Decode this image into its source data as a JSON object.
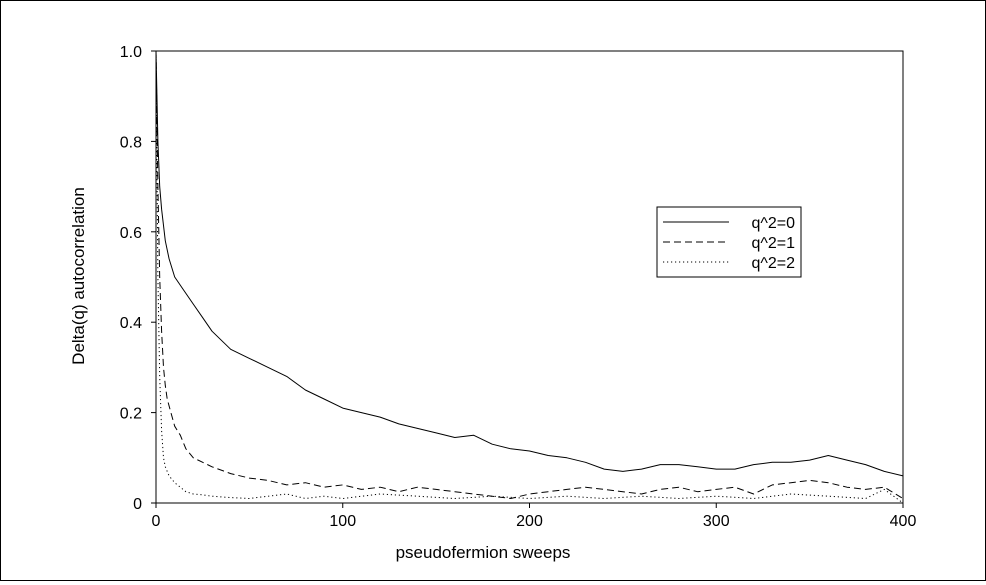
{
  "chart_data": {
    "type": "line",
    "xlabel": "pseudofermion sweeps",
    "ylabel": "Delta(q) autocorrelation",
    "xlim": [
      0,
      400
    ],
    "ylim": [
      0,
      1.0
    ],
    "xticks": [
      {
        "value": 0,
        "label": "0"
      },
      {
        "value": 100,
        "label": "100"
      },
      {
        "value": 200,
        "label": "200"
      },
      {
        "value": 300,
        "label": "300"
      },
      {
        "value": 400,
        "label": "400"
      }
    ],
    "yticks": [
      {
        "value": 0,
        "label": "0"
      },
      {
        "value": 0.2,
        "label": "0.2"
      },
      {
        "value": 0.4,
        "label": "0.4"
      },
      {
        "value": 0.6,
        "label": "0.6"
      },
      {
        "value": 0.8,
        "label": "0.8"
      },
      {
        "value": 1.0,
        "label": "1.0"
      }
    ],
    "grid": false,
    "legend_position": "right",
    "series": [
      {
        "name": "q^2=0",
        "style": "solid",
        "color": "#000000",
        "x": [
          0,
          1,
          2,
          3,
          5,
          7,
          10,
          15,
          20,
          25,
          30,
          35,
          40,
          50,
          60,
          70,
          80,
          90,
          100,
          110,
          120,
          130,
          140,
          150,
          160,
          170,
          180,
          190,
          200,
          210,
          220,
          230,
          240,
          250,
          260,
          270,
          280,
          290,
          300,
          310,
          320,
          330,
          340,
          350,
          360,
          370,
          380,
          390,
          400
        ],
        "y": [
          1.0,
          0.8,
          0.7,
          0.65,
          0.58,
          0.54,
          0.5,
          0.47,
          0.44,
          0.41,
          0.38,
          0.36,
          0.34,
          0.32,
          0.3,
          0.28,
          0.25,
          0.23,
          0.21,
          0.2,
          0.19,
          0.175,
          0.165,
          0.155,
          0.145,
          0.15,
          0.13,
          0.12,
          0.115,
          0.105,
          0.1,
          0.09,
          0.075,
          0.07,
          0.075,
          0.085,
          0.085,
          0.08,
          0.075,
          0.075,
          0.085,
          0.09,
          0.09,
          0.095,
          0.105,
          0.095,
          0.085,
          0.07,
          0.06
        ]
      },
      {
        "name": "q^2=1",
        "style": "dashed",
        "color": "#000000",
        "x": [
          0,
          1,
          2,
          3,
          4,
          5,
          6,
          8,
          10,
          13,
          16,
          20,
          25,
          30,
          40,
          50,
          60,
          70,
          80,
          90,
          100,
          110,
          120,
          130,
          140,
          150,
          160,
          170,
          180,
          190,
          200,
          210,
          220,
          230,
          240,
          250,
          260,
          270,
          280,
          290,
          300,
          310,
          320,
          330,
          340,
          350,
          360,
          370,
          380,
          390,
          400
        ],
        "y": [
          1.0,
          0.7,
          0.5,
          0.38,
          0.3,
          0.26,
          0.23,
          0.2,
          0.17,
          0.15,
          0.12,
          0.1,
          0.09,
          0.08,
          0.065,
          0.055,
          0.05,
          0.04,
          0.045,
          0.035,
          0.04,
          0.03,
          0.035,
          0.025,
          0.035,
          0.03,
          0.025,
          0.02,
          0.015,
          0.01,
          0.02,
          0.025,
          0.03,
          0.035,
          0.03,
          0.025,
          0.02,
          0.03,
          0.035,
          0.025,
          0.03,
          0.035,
          0.02,
          0.04,
          0.045,
          0.05,
          0.045,
          0.035,
          0.03,
          0.035,
          0.01
        ]
      },
      {
        "name": "q^2=2",
        "style": "dotted",
        "color": "#000000",
        "x": [
          0,
          1,
          2,
          3,
          4,
          5,
          7,
          10,
          13,
          16,
          20,
          25,
          30,
          40,
          50,
          60,
          70,
          80,
          90,
          100,
          120,
          140,
          160,
          180,
          200,
          220,
          240,
          260,
          280,
          300,
          320,
          340,
          360,
          380,
          390,
          400
        ],
        "y": [
          1.0,
          0.5,
          0.28,
          0.16,
          0.1,
          0.08,
          0.06,
          0.045,
          0.035,
          0.025,
          0.02,
          0.018,
          0.015,
          0.012,
          0.01,
          0.015,
          0.02,
          0.01,
          0.015,
          0.01,
          0.02,
          0.015,
          0.01,
          0.015,
          0.01,
          0.015,
          0.01,
          0.015,
          0.01,
          0.015,
          0.01,
          0.02,
          0.015,
          0.01,
          0.03,
          0.0
        ]
      }
    ]
  }
}
